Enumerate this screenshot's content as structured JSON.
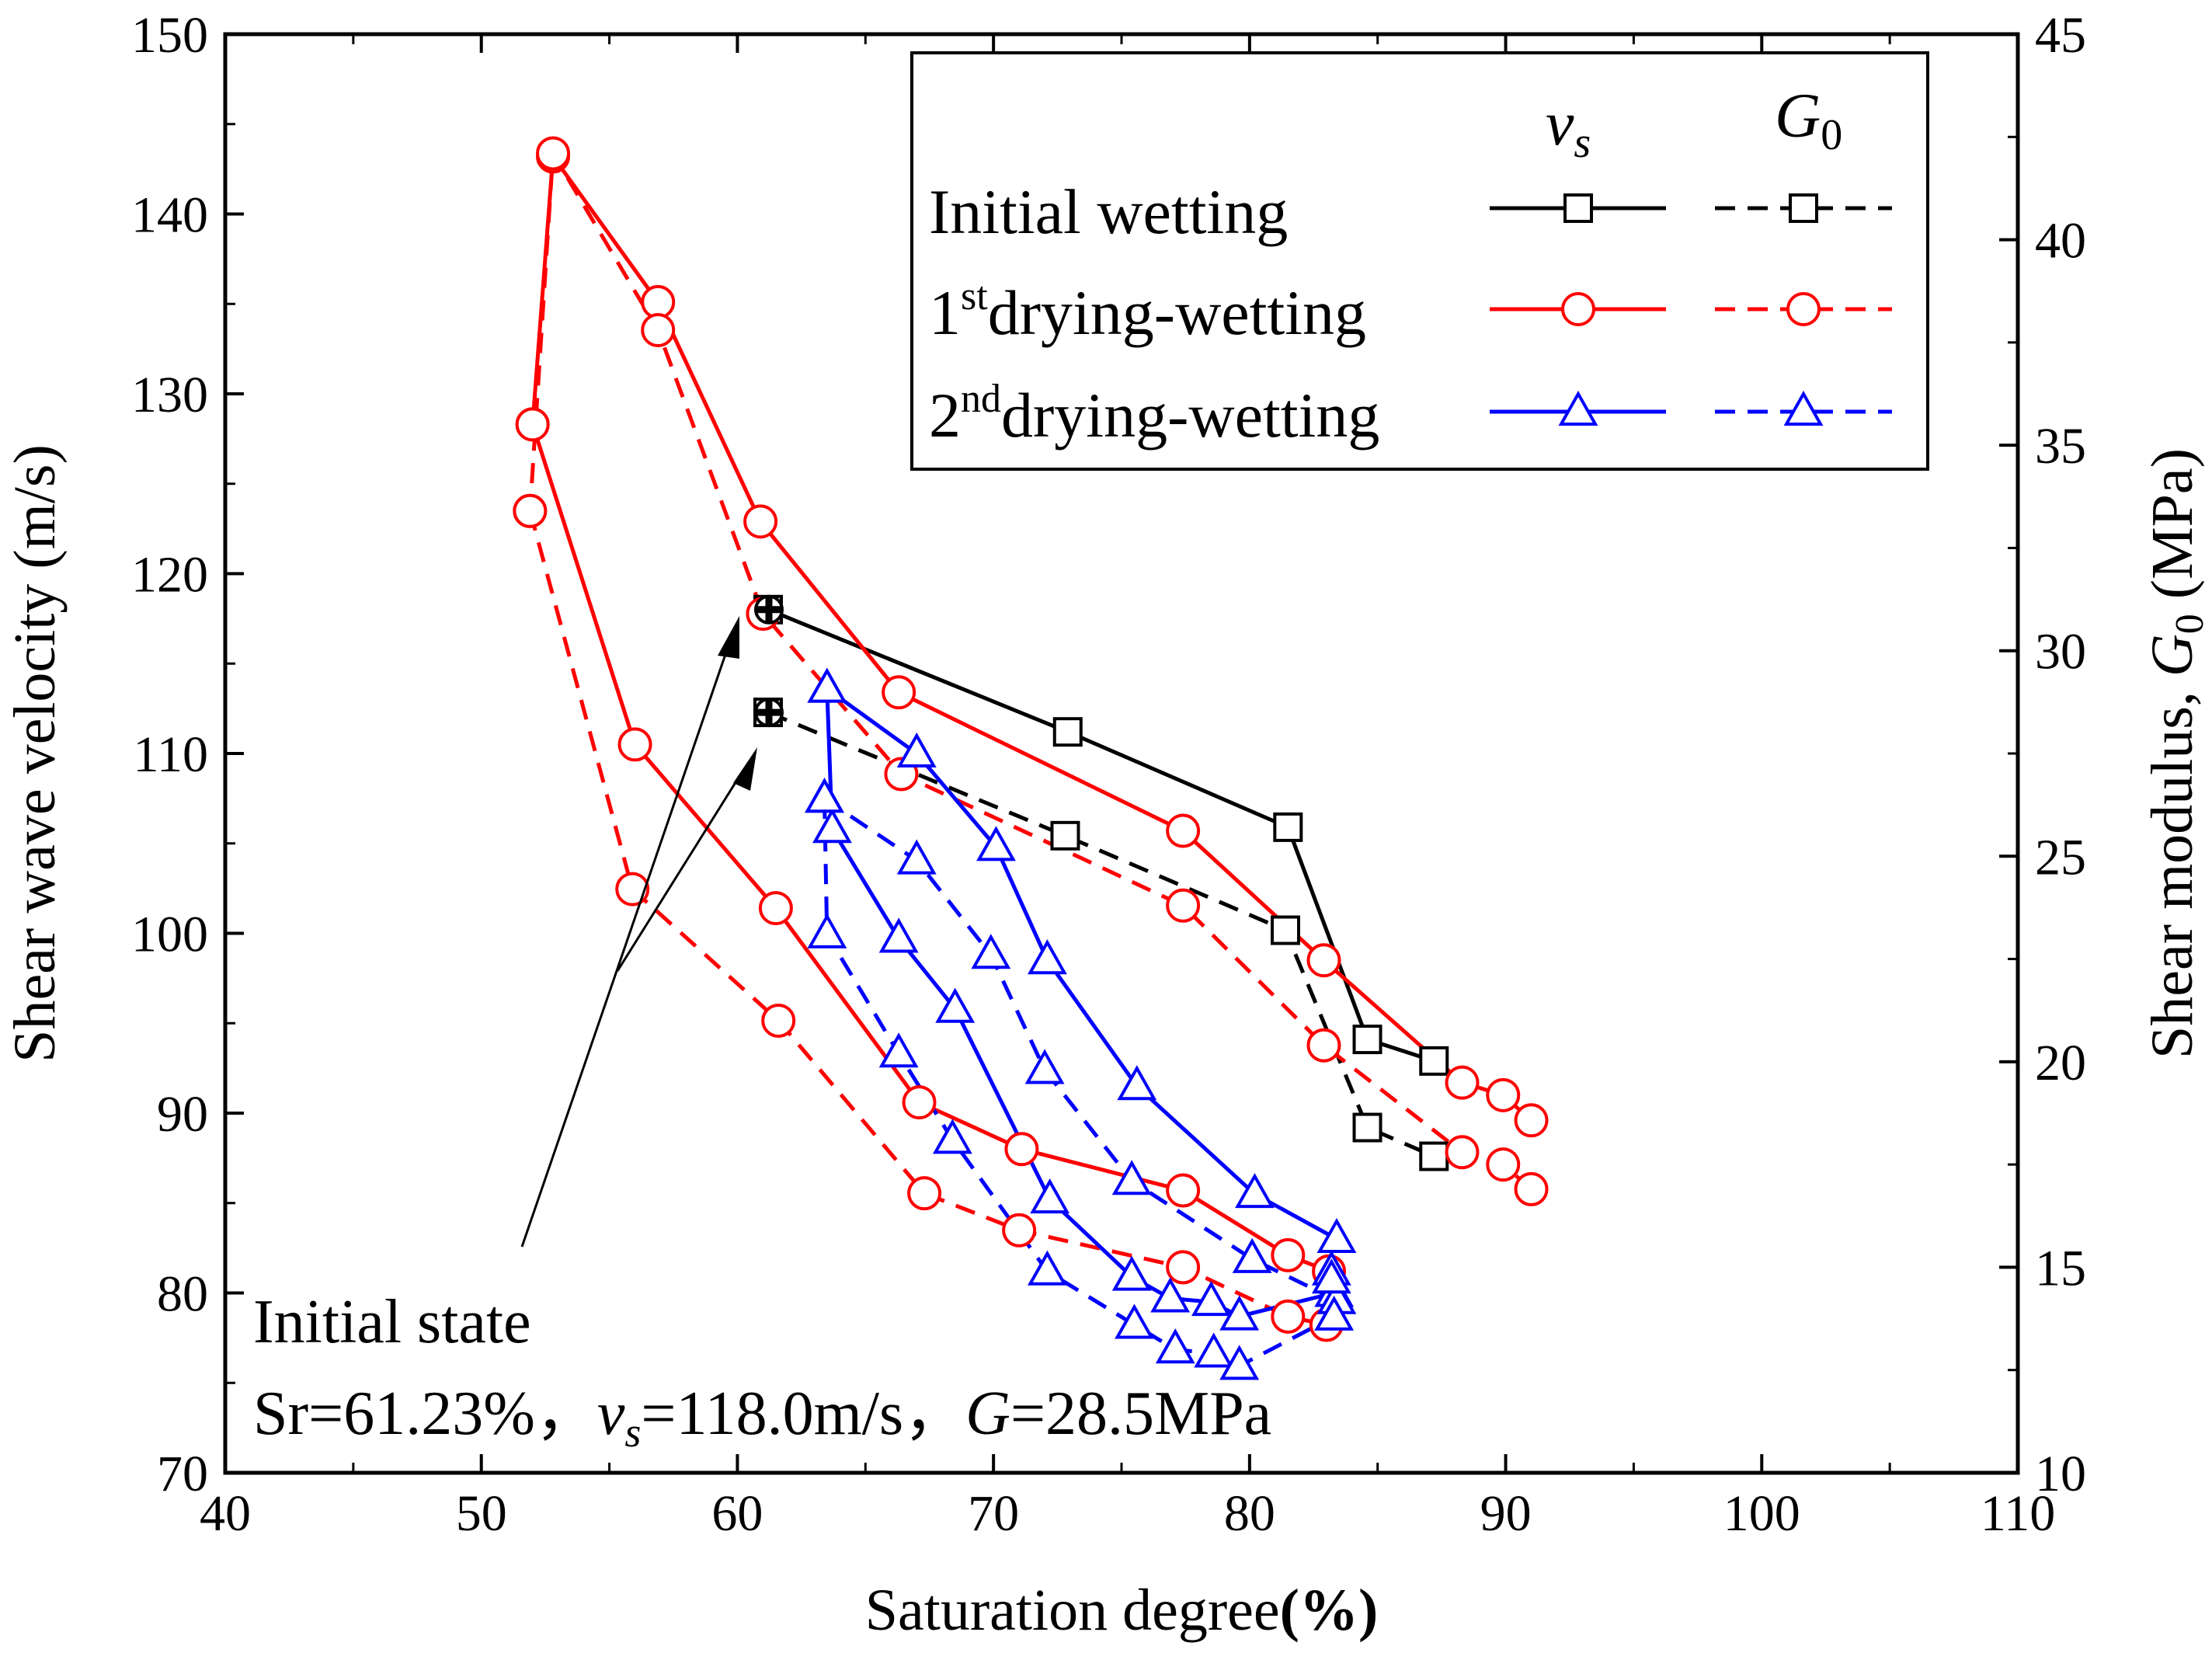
{
  "chart_data": {
    "type": "line",
    "title": "",
    "xlabel": "Saturation degree",
    "xlabel_unit": "(%)",
    "ylabel": "Shear wave velocity (m/s)",
    "y2label_prefix": "Shear modulus, ",
    "y2label_symbol": "G",
    "y2label_sub": "0",
    "y2label_unit": " (MPa)",
    "xlim": [
      40,
      110
    ],
    "ylim": [
      70,
      150
    ],
    "y2lim": [
      10,
      45
    ],
    "x_ticks": [
      "40",
      "50",
      "60",
      "70",
      "80",
      "90",
      "100",
      "110"
    ],
    "y_ticks": [
      "70",
      "80",
      "90",
      "100",
      "110",
      "120",
      "130",
      "140",
      "150"
    ],
    "y2_ticks": [
      "10",
      "15",
      "20",
      "25",
      "30",
      "35",
      "40",
      "45"
    ],
    "legend": {
      "placement": "top-right",
      "header_vs": "v",
      "header_vs_sub": "s",
      "header_g0": "G",
      "header_g0_sub": "0",
      "entries": [
        {
          "label": "Initial wetting",
          "sup": "",
          "rest": "",
          "color": "#000000",
          "marker": "square"
        },
        {
          "label": "1",
          "sup": "st",
          "rest": "drying-wetting",
          "color": "#ff0000",
          "marker": "circle"
        },
        {
          "label": "2",
          "sup": "nd",
          "rest": "drying-wetting",
          "color": "#0000ff",
          "marker": "triangle"
        }
      ]
    },
    "annotation": {
      "line1": "Initial state",
      "line2_a": "Sr=61.23%，",
      "line2_v": "v",
      "line2_s": "s",
      "line2_b": "=118.0m/s，",
      "line2_g": "G",
      "line2_c": "=28.5MPa"
    },
    "initial_point": {
      "x": 61.23,
      "vs": 118.0,
      "g0": 28.5
    },
    "series": [
      {
        "name": "Initial wetting vs",
        "axis": "left",
        "color": "#000000",
        "style": "solid",
        "marker": "square",
        "points": [
          [
            61.2,
            118.0
          ],
          [
            72.9,
            111.2
          ],
          [
            81.5,
            105.9
          ],
          [
            84.6,
            94.1
          ],
          [
            87.2,
            92.9
          ]
        ]
      },
      {
        "name": "Initial wetting G0",
        "axis": "right",
        "color": "#000000",
        "style": "dashed",
        "marker": "square",
        "points": [
          [
            61.2,
            28.5
          ],
          [
            72.8,
            25.5
          ],
          [
            81.4,
            23.2
          ],
          [
            84.6,
            18.4
          ],
          [
            87.2,
            17.7
          ]
        ]
      },
      {
        "name": "1st drying-wetting vs (drying)",
        "axis": "left",
        "color": "#ff0000",
        "style": "solid",
        "marker": "circle",
        "points": [
          [
            91.0,
            89.6
          ],
          [
            89.9,
            91.0
          ],
          [
            88.3,
            91.7
          ],
          [
            82.9,
            98.5
          ],
          [
            77.4,
            105.7
          ],
          [
            66.3,
            113.4
          ],
          [
            60.9,
            122.9
          ],
          [
            56.9,
            135.1
          ],
          [
            52.8,
            143.2
          ],
          [
            52.0,
            128.3
          ]
        ]
      },
      {
        "name": "1st drying-wetting vs (wetting)",
        "axis": "left",
        "color": "#ff0000",
        "style": "solid",
        "marker": "circle",
        "points": [
          [
            52.0,
            128.3
          ],
          [
            56.0,
            110.5
          ],
          [
            61.5,
            101.4
          ],
          [
            67.1,
            90.6
          ],
          [
            71.1,
            88.0
          ],
          [
            77.4,
            85.7
          ],
          [
            81.5,
            82.1
          ],
          [
            83.1,
            81.2
          ]
        ]
      },
      {
        "name": "1st drying-wetting G0 (drying)",
        "axis": "right",
        "color": "#ff0000",
        "style": "dashed",
        "marker": "circle",
        "points": [
          [
            91.0,
            16.9
          ],
          [
            89.9,
            17.5
          ],
          [
            88.3,
            17.8
          ],
          [
            82.9,
            20.4
          ],
          [
            77.4,
            23.8
          ],
          [
            66.4,
            27.0
          ],
          [
            61.0,
            30.9
          ],
          [
            56.9,
            37.8
          ],
          [
            52.8,
            42.1
          ],
          [
            51.9,
            33.4
          ]
        ]
      },
      {
        "name": "1st drying-wetting G0 (wetting)",
        "axis": "right",
        "color": "#ff0000",
        "style": "dashed",
        "marker": "circle",
        "points": [
          [
            51.9,
            33.4
          ],
          [
            55.9,
            24.2
          ],
          [
            61.6,
            21.0
          ],
          [
            67.3,
            16.8
          ],
          [
            71.0,
            15.9
          ],
          [
            77.4,
            15.0
          ],
          [
            81.5,
            13.8
          ],
          [
            83.0,
            13.6
          ]
        ]
      },
      {
        "name": "2nd drying-wetting vs (drying)",
        "axis": "left",
        "color": "#0000ff",
        "style": "solid",
        "marker": "triangle",
        "points": [
          [
            83.4,
            83.0
          ],
          [
            80.2,
            85.5
          ],
          [
            75.6,
            91.5
          ],
          [
            72.1,
            98.5
          ],
          [
            70.1,
            104.8
          ],
          [
            67.0,
            110.0
          ],
          [
            63.5,
            113.6
          ]
        ]
      },
      {
        "name": "2nd drying-wetting vs (wetting)",
        "axis": "left",
        "color": "#0000ff",
        "style": "solid",
        "marker": "triangle",
        "points": [
          [
            63.5,
            113.6
          ],
          [
            63.7,
            105.8
          ],
          [
            66.3,
            99.7
          ],
          [
            68.5,
            95.8
          ],
          [
            72.2,
            85.2
          ],
          [
            75.4,
            80.9
          ],
          [
            76.9,
            79.7
          ],
          [
            78.5,
            79.5
          ],
          [
            79.6,
            78.7
          ],
          [
            83.3,
            80.0
          ],
          [
            83.2,
            81.2
          ]
        ]
      },
      {
        "name": "2nd drying-wetting G0 (drying)",
        "axis": "right",
        "color": "#0000ff",
        "style": "dashed",
        "marker": "triangle",
        "points": [
          [
            83.4,
            14.2
          ],
          [
            80.1,
            15.2
          ],
          [
            75.4,
            17.1
          ],
          [
            72.0,
            19.8
          ],
          [
            69.9,
            22.6
          ],
          [
            67.0,
            24.9
          ],
          [
            63.4,
            26.4
          ]
        ]
      },
      {
        "name": "2nd drying-wetting G0 (wetting)",
        "axis": "right",
        "color": "#0000ff",
        "style": "dashed",
        "marker": "triangle",
        "points": [
          [
            63.4,
            26.4
          ],
          [
            63.5,
            23.1
          ],
          [
            66.3,
            20.2
          ],
          [
            68.4,
            18.1
          ],
          [
            72.1,
            14.9
          ],
          [
            75.5,
            13.6
          ],
          [
            77.1,
            13.0
          ],
          [
            78.6,
            12.9
          ],
          [
            79.6,
            12.6
          ],
          [
            83.3,
            13.8
          ],
          [
            83.2,
            14.7
          ]
        ]
      }
    ]
  }
}
